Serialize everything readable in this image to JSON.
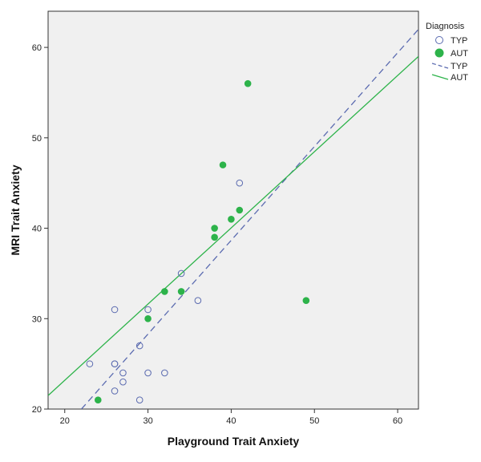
{
  "chart_data": {
    "type": "scatter",
    "xlabel": "Playground Trait Anxiety",
    "ylabel": "MRI Trait Anxiety",
    "xlim": [
      18,
      62.5
    ],
    "ylim": [
      20,
      64
    ],
    "xticks": [
      20,
      30,
      40,
      50,
      60
    ],
    "yticks": [
      20,
      30,
      40,
      50,
      60
    ],
    "grid": false,
    "legend": {
      "title": "Diagnosis",
      "placement": "top-right outside",
      "entries": [
        {
          "label": "TYP",
          "kind": "marker-open"
        },
        {
          "label": "AUT",
          "kind": "marker-filled"
        },
        {
          "label": "TYP",
          "kind": "line-dashed"
        },
        {
          "label": "AUT",
          "kind": "line-solid"
        }
      ]
    },
    "colors": {
      "typ": "#5b6bb0",
      "aut": "#2db34a",
      "plot_bg": "#f0f0f0"
    },
    "series": [
      {
        "name": "TYP",
        "points": [
          [
            23,
            25
          ],
          [
            26,
            31
          ],
          [
            26,
            25
          ],
          [
            26,
            25
          ],
          [
            26,
            22
          ],
          [
            27,
            24
          ],
          [
            27,
            23
          ],
          [
            29,
            27
          ],
          [
            29,
            21
          ],
          [
            30,
            31
          ],
          [
            30,
            24
          ],
          [
            32,
            24
          ],
          [
            34,
            35
          ],
          [
            36,
            32
          ],
          [
            41,
            45
          ]
        ]
      },
      {
        "name": "AUT",
        "points": [
          [
            24,
            21
          ],
          [
            30,
            30
          ],
          [
            32,
            33
          ],
          [
            34,
            33
          ],
          [
            38,
            40
          ],
          [
            38,
            39
          ],
          [
            39,
            47
          ],
          [
            40,
            41
          ],
          [
            41,
            42
          ],
          [
            42,
            56
          ],
          [
            49,
            32
          ]
        ]
      }
    ],
    "fit_lines": [
      {
        "name": "TYP",
        "style": "dashed",
        "from": [
          22,
          20
        ],
        "to": [
          62.5,
          62
        ]
      },
      {
        "name": "AUT",
        "style": "solid",
        "from": [
          18,
          21.5
        ],
        "to": [
          62.5,
          59
        ]
      }
    ]
  }
}
